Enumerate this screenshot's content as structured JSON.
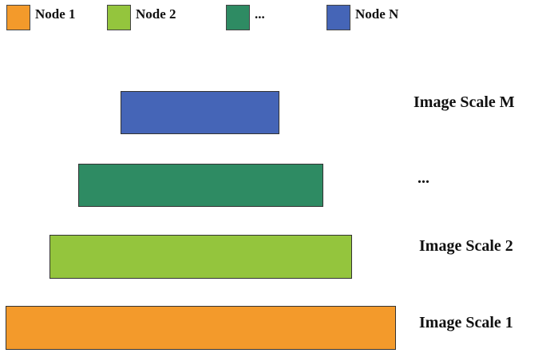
{
  "colors": {
    "node_1": "#f39a2b",
    "node_2": "#94c53d",
    "node_dots": "#2e8b63",
    "node_n": "#4565b7"
  },
  "legend": [
    {
      "label": "Node 1",
      "color": "#f39a2b"
    },
    {
      "label": "Node 2",
      "color": "#94c53d"
    },
    {
      "label": "...",
      "color": "#2e8b63"
    },
    {
      "label": "Node N",
      "color": "#4565b7"
    }
  ],
  "scales": [
    {
      "label": "Image Scale M",
      "color": "#4565b7"
    },
    {
      "label": "...",
      "color": "#2e8b63"
    },
    {
      "label": "Image Scale 2",
      "color": "#94c53d"
    },
    {
      "label": "Image Scale 1",
      "color": "#f39a2b"
    }
  ]
}
